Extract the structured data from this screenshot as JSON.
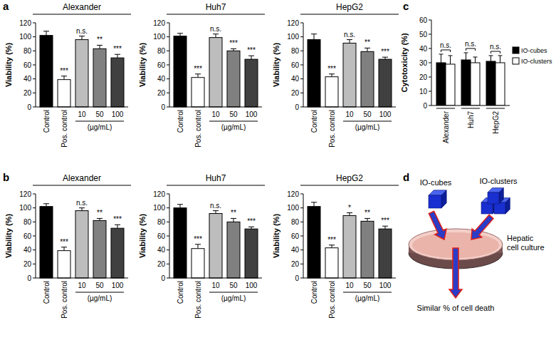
{
  "panels": [
    "a",
    "b",
    "c",
    "d"
  ],
  "chart_data": [
    {
      "type": "bar",
      "title": "Alexander",
      "categories": [
        "Control",
        "Pos. control",
        "10",
        "50",
        "100"
      ],
      "x_label": "(µg/mL)",
      "y_label": "Viability (%)",
      "values": [
        102,
        39,
        96,
        83,
        70
      ],
      "errors": [
        6,
        5,
        5,
        5,
        5
      ],
      "annotations": [
        null,
        "***",
        "n.s.",
        "**",
        "***"
      ],
      "colors": [
        "#000000",
        "#ffffff",
        "#bdbdbd",
        "#808080",
        "#404040"
      ],
      "ylim": [
        0,
        120
      ],
      "yticks": [
        0,
        20,
        40,
        60,
        80,
        100,
        120
      ]
    },
    {
      "type": "bar",
      "title": "Huh7",
      "categories": [
        "Control",
        "Pos. control",
        "10",
        "50",
        "100"
      ],
      "x_label": "(µg/mL)",
      "y_label": "Viability (%)",
      "values": [
        101,
        42,
        99,
        80,
        68
      ],
      "errors": [
        4,
        5,
        5,
        3,
        5
      ],
      "annotations": [
        null,
        "***",
        "n.s.",
        "***",
        "***"
      ],
      "colors": [
        "#000000",
        "#ffffff",
        "#bdbdbd",
        "#808080",
        "#404040"
      ],
      "ylim": [
        0,
        120
      ],
      "yticks": [
        0,
        20,
        40,
        60,
        80,
        100,
        120
      ]
    },
    {
      "type": "bar",
      "title": "HepG2",
      "categories": [
        "Control",
        "Pos. control",
        "10",
        "50",
        "100"
      ],
      "x_label": "(µg/mL)",
      "y_label": "Viability (%)",
      "values": [
        96,
        43,
        91,
        79,
        68
      ],
      "errors": [
        8,
        4,
        5,
        5,
        3
      ],
      "annotations": [
        null,
        "***",
        "n.s.",
        "**",
        "***"
      ],
      "colors": [
        "#000000",
        "#ffffff",
        "#bdbdbd",
        "#808080",
        "#404040"
      ],
      "ylim": [
        0,
        120
      ],
      "yticks": [
        0,
        20,
        40,
        60,
        80,
        100,
        120
      ]
    },
    {
      "type": "bar",
      "title": "Alexander",
      "categories": [
        "Control",
        "Pos. control",
        "10",
        "50",
        "100"
      ],
      "x_label": "(µg/mL)",
      "y_label": "Viability (%)",
      "values": [
        102,
        39,
        96,
        82,
        71
      ],
      "errors": [
        4,
        5,
        4,
        3,
        5
      ],
      "annotations": [
        null,
        "***",
        "n.s.",
        "**",
        "***"
      ],
      "colors": [
        "#000000",
        "#ffffff",
        "#bdbdbd",
        "#808080",
        "#404040"
      ],
      "ylim": [
        0,
        120
      ],
      "yticks": [
        0,
        20,
        40,
        60,
        80,
        100,
        120
      ]
    },
    {
      "type": "bar",
      "title": "Huh7",
      "categories": [
        "Control",
        "Pos. control",
        "10",
        "50",
        "100"
      ],
      "x_label": "(µg/mL)",
      "y_label": "Viability (%)",
      "values": [
        100,
        42,
        92,
        80,
        70
      ],
      "errors": [
        5,
        6,
        4,
        5,
        3
      ],
      "annotations": [
        null,
        "***",
        "n.s.",
        "**",
        "***"
      ],
      "colors": [
        "#000000",
        "#ffffff",
        "#bdbdbd",
        "#808080",
        "#404040"
      ],
      "ylim": [
        0,
        120
      ],
      "yticks": [
        0,
        20,
        40,
        60,
        80,
        100,
        120
      ]
    },
    {
      "type": "bar",
      "title": "HepG2",
      "categories": [
        "Control",
        "Pos. control",
        "10",
        "50",
        "100"
      ],
      "x_label": "(µg/mL)",
      "y_label": "Viability (%)",
      "values": [
        102,
        43,
        89,
        81,
        70
      ],
      "errors": [
        6,
        4,
        4,
        4,
        4
      ],
      "annotations": [
        null,
        "***",
        "*",
        "**",
        "***"
      ],
      "colors": [
        "#000000",
        "#ffffff",
        "#bdbdbd",
        "#808080",
        "#404040"
      ],
      "ylim": [
        0,
        120
      ],
      "yticks": [
        0,
        20,
        40,
        60,
        80,
        100,
        120
      ]
    },
    {
      "type": "bar",
      "y_label": "Cytotoxicity (%)",
      "categories": [
        "Alexander",
        "Huh7",
        "HepG2"
      ],
      "series": [
        {
          "name": "IO-cubes",
          "color": "#000000",
          "values": [
            30,
            32,
            31
          ],
          "errors": [
            6,
            5,
            4
          ]
        },
        {
          "name": "IO-clusters",
          "color": "#ffffff",
          "values": [
            29,
            30,
            30
          ],
          "errors": [
            6,
            4,
            5
          ]
        }
      ],
      "annotations": [
        "n.s.",
        "n.s.",
        "n.s."
      ],
      "ylim": [
        0,
        60
      ],
      "yticks": [
        0,
        10,
        20,
        30,
        40,
        50,
        60
      ],
      "legend": "right"
    }
  ],
  "diagram": {
    "labels": {
      "cubes": "IO-cubes",
      "clusters": "IO-clusters",
      "culture": [
        "Hepatic",
        "cell culture"
      ],
      "result": "Similar % of cell death"
    }
  }
}
